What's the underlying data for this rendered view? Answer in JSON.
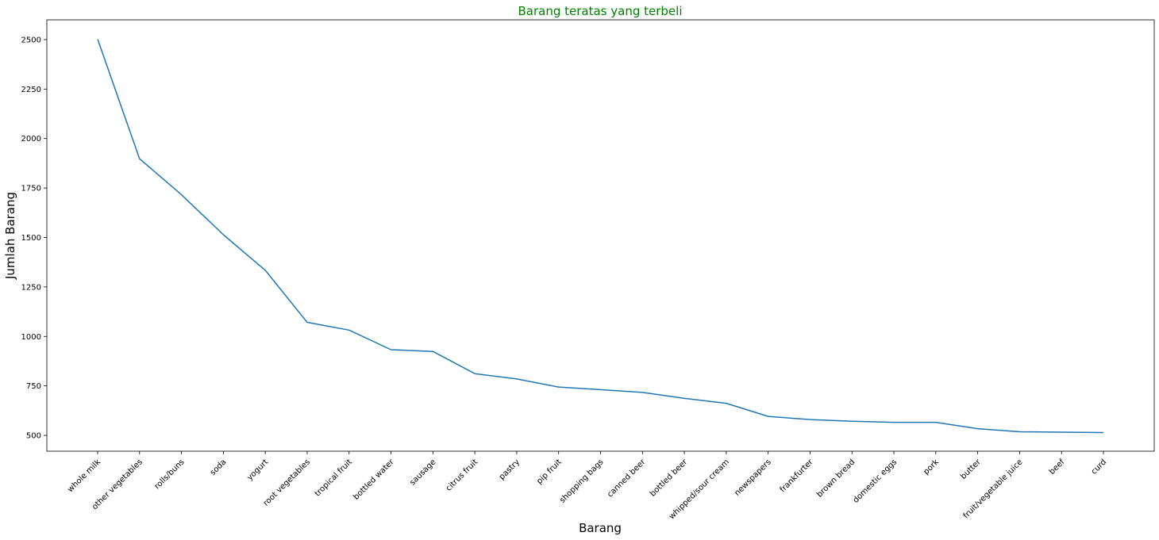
{
  "chart_data": {
    "type": "line",
    "title": "Barang teratas yang terbeli",
    "xlabel": "Barang",
    "ylabel": "Jumlah Barang",
    "categories": [
      "whole milk",
      "other vegetables",
      "rolls/buns",
      "soda",
      "yogurt",
      "root vegetables",
      "tropical fruit",
      "bottled water",
      "sausage",
      "citrus fruit",
      "pastry",
      "pip fruit",
      "shopping bags",
      "canned beer",
      "bottled beer",
      "whipped/sour cream",
      "newspapers",
      "frankfurter",
      "brown bread",
      "domestic eggs",
      "pork",
      "butter",
      "fruit/vegetable juice",
      "beef",
      "curd"
    ],
    "series": [
      {
        "values": [
          2502,
          1898,
          1716,
          1514,
          1334,
          1071,
          1032,
          933,
          924,
          812,
          785,
          744,
          731,
          717,
          687,
          662,
          596,
          580,
          571,
          566,
          566,
          534,
          518,
          516,
          514
        ]
      }
    ],
    "yticks": [
      500,
      750,
      1000,
      1250,
      1500,
      1750,
      2000,
      2250,
      2500
    ],
    "ylim": [
      420,
      2600
    ],
    "grid": false,
    "legend": "none",
    "colors": {
      "line": "#1f77b4",
      "title": "#008000",
      "axes": "#000000"
    }
  }
}
